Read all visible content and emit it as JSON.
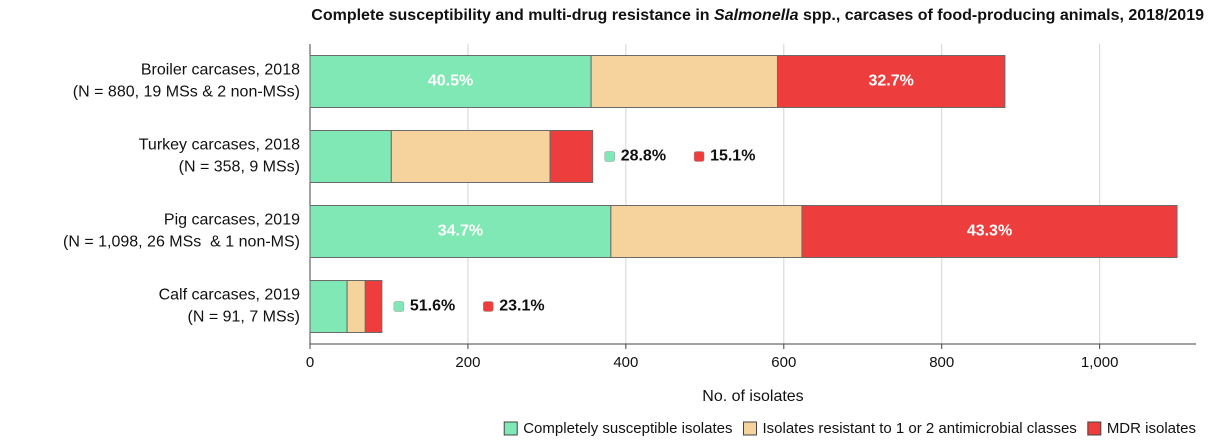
{
  "chart_data": {
    "type": "stacked_barh",
    "title": [
      "Complete susceptibility and multi-drug resistance in ",
      "Salmonella",
      " spp., carcases of food-producing animals, 2018/2019"
    ],
    "categories": [
      [
        "Broiler carcases, 2018",
        "(N = 880, 19 MSs & 2 non-MSs)"
      ],
      [
        "Turkey carcases, 2018",
        "(N = 358, 9 MSs)"
      ],
      [
        "Pig carcases, 2019",
        "(N = 1,098, 26 MSs  & 1 non-MS)"
      ],
      [
        "Calf carcases, 2019",
        "(N = 91, 7 MSs)"
      ]
    ],
    "series": [
      {
        "name": "Completely susceptible isolates",
        "color": "#80e8b4",
        "values": [
          356,
          103,
          381,
          47
        ],
        "labels": [
          "40.5%",
          "28.8%",
          "34.7%",
          "51.6%"
        ]
      },
      {
        "name": "Isolates resistant to 1 or 2 antimicrobial classes",
        "color": "#f6d29c",
        "values": [
          236,
          201,
          242,
          23
        ]
      },
      {
        "name": "MDR isolates",
        "color": "#ee3d3d",
        "values": [
          288,
          54,
          475,
          21
        ],
        "labels": [
          "32.7%",
          "15.1%",
          "43.3%",
          "23.1%"
        ]
      }
    ],
    "xlabel": "No. of isolates",
    "xlim": [
      0,
      1122
    ],
    "xticks": [
      0,
      200,
      400,
      600,
      800,
      {
        "value": 1000,
        "label": "1,000"
      }
    ],
    "grid": true,
    "legend": "bottom-right"
  }
}
